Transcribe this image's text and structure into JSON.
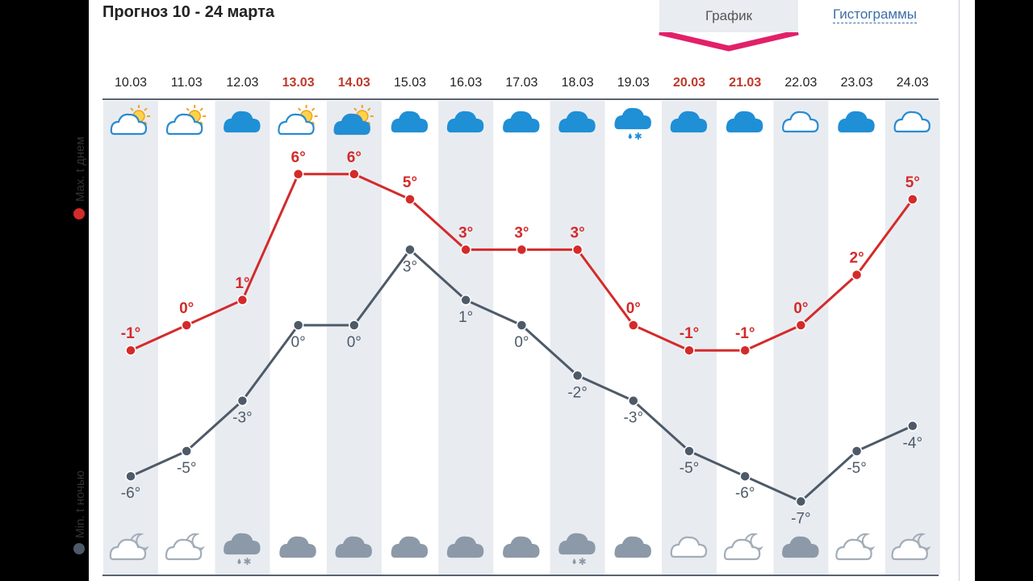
{
  "header": {
    "title": "Прогноз 10 - 24 марта",
    "tab_graph_label": "График",
    "tab_hist_label": "Гистограммы"
  },
  "legend": {
    "max_label": "Max. t днем",
    "min_label": "Min. t ночью"
  },
  "colors": {
    "max_line": "#d42a2a",
    "min_line": "#4e5a68",
    "weekend_date": "#c0392b",
    "weekday_date": "#222222",
    "column_shade": "#e8ecf1",
    "accent_pink": "#e2206a",
    "rule": "#5a6270"
  },
  "chart_data": {
    "type": "line",
    "title": "Прогноз 10 - 24 марта",
    "categories": [
      "10.03",
      "11.03",
      "12.03",
      "13.03",
      "14.03",
      "15.03",
      "16.03",
      "17.03",
      "18.03",
      "19.03",
      "20.03",
      "21.03",
      "22.03",
      "23.03",
      "24.03"
    ],
    "weekend": [
      false,
      false,
      false,
      true,
      true,
      false,
      false,
      false,
      false,
      false,
      true,
      true,
      false,
      false,
      false
    ],
    "series": [
      {
        "name": "Max. t днем",
        "values": [
          -1,
          0,
          1,
          6,
          6,
          5,
          3,
          3,
          3,
          0,
          -1,
          -1,
          0,
          2,
          5
        ]
      },
      {
        "name": "Min. t ночью",
        "values": [
          -6,
          -5,
          -3,
          0,
          0,
          3,
          1,
          0,
          -2,
          -3,
          -5,
          -6,
          -7,
          -5,
          -4
        ]
      }
    ],
    "day_icons": [
      "partly-cloudy-sun-icon",
      "partly-cloudy-sun-icon",
      "cloud-icon",
      "partly-cloudy-sun-icon",
      "cloud-sun-icon",
      "cloud-icon",
      "cloud-icon",
      "cloud-icon",
      "cloud-icon",
      "cloud-rain-snow-icon",
      "cloud-icon",
      "cloud-icon",
      "cloud-outline-icon",
      "cloud-icon",
      "cloud-outline-icon"
    ],
    "night_icons": [
      "cloud-moon-icon",
      "cloud-moon-icon",
      "cloud-rain-snow-icon",
      "cloud-icon",
      "cloud-icon",
      "cloud-icon",
      "cloud-icon",
      "cloud-icon",
      "cloud-rain-snow-icon",
      "cloud-icon",
      "cloud-outline-icon",
      "cloud-moon-icon",
      "cloud-icon",
      "cloud-moon-icon",
      "cloud-moon-icon"
    ],
    "unit": "°",
    "legend_position": "left"
  }
}
